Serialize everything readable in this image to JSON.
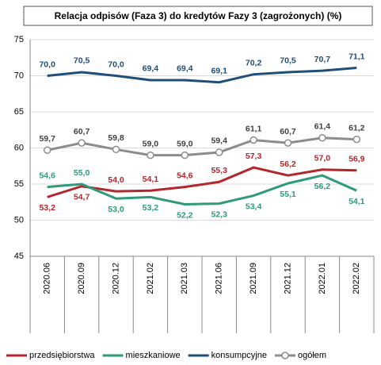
{
  "chart_data": {
    "type": "line",
    "title": "Relacja odpisów (Faza 3) do kredytów Fazy 3 (zagrożonych) (%)",
    "categories": [
      "2020.06",
      "2020.09",
      "2020.12",
      "2021.02",
      "2021.03",
      "2021.06",
      "2021.09",
      "2021.12",
      "2022.01",
      "2022.02"
    ],
    "series": [
      {
        "name": "przedsiębiorstwa",
        "color": "#b3262b",
        "values": [
          53.2,
          54.7,
          54.0,
          54.1,
          54.6,
          55.3,
          57.3,
          56.2,
          57.0,
          56.9
        ],
        "value_labels": [
          "53,2",
          "54,7",
          "54,0",
          "54,1",
          "54,6",
          "55,3",
          "57,3",
          "56,2",
          "57,0",
          "56,9"
        ]
      },
      {
        "name": "mieszkaniowe",
        "color": "#2e9a78",
        "values": [
          54.6,
          55.0,
          53.0,
          53.2,
          52.2,
          52.3,
          53.4,
          55.1,
          56.2,
          54.1
        ],
        "value_labels": [
          "54,6",
          "55,0",
          "53,0",
          "53,2",
          "52,2",
          "52,3",
          "53,4",
          "55,1",
          "56,2",
          "54,1"
        ]
      },
      {
        "name": "konsumpcyjne",
        "color": "#1f4e79",
        "values": [
          70.0,
          70.5,
          70.0,
          69.4,
          69.4,
          69.1,
          70.2,
          70.5,
          70.7,
          71.1
        ],
        "value_labels": [
          "70,0",
          "70,5",
          "70,0",
          "69,4",
          "69,4",
          "69,1",
          "70,2",
          "70,5",
          "70,7",
          "71,1"
        ]
      },
      {
        "name": "ogółem",
        "color": "#8c8c8c",
        "marker": "circle",
        "values": [
          59.7,
          60.7,
          59.8,
          59.0,
          59.0,
          59.4,
          61.1,
          60.7,
          61.4,
          61.2
        ],
        "value_labels": [
          "59,7",
          "60,7",
          "59,8",
          "59,0",
          "59,0",
          "59,4",
          "61,1",
          "60,7",
          "61,4",
          "61,2"
        ]
      }
    ],
    "ylim": [
      45,
      75
    ],
    "yticks": [
      45,
      50,
      55,
      60,
      65,
      70,
      75
    ],
    "grid": true,
    "legend": "bottom"
  }
}
